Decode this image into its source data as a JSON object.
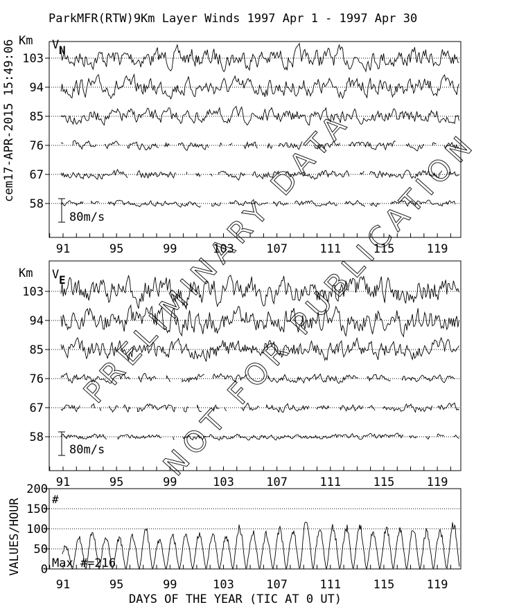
{
  "side_label": "cem17-APR-2015 15:49:06",
  "watermark": {
    "line1": "PRELIMINARY DATA",
    "line2": "NOT FOR PUBLICATION"
  },
  "chart_data": [
    {
      "type": "line",
      "title": "ParkMFR(RTW)9Km Layer Winds 1997 Apr  1 - 1997 Apr 30",
      "component_label": "V",
      "component_sub": "N",
      "ylabel": "Km",
      "heights_km": [
        103,
        94,
        85,
        76,
        67,
        58
      ],
      "y_tick_labels": [
        "103",
        "94",
        "85",
        "76",
        "67",
        "58"
      ],
      "scale_label": "80m/s",
      "x_tick_labels": [
        "91",
        "95",
        "99",
        "103",
        "107",
        "111",
        "115",
        "119"
      ],
      "xlim": [
        89,
        121.3
      ],
      "grid": "dotted at each height"
    },
    {
      "type": "line",
      "component_label": "V",
      "component_sub": "E",
      "ylabel": "Km",
      "heights_km": [
        103,
        94,
        85,
        76,
        67,
        58
      ],
      "y_tick_labels": [
        "103",
        "94",
        "85",
        "76",
        "67",
        "58"
      ],
      "scale_label": "80m/s",
      "x_tick_labels": [
        "91",
        "95",
        "99",
        "103",
        "107",
        "111",
        "115",
        "119"
      ],
      "xlim": [
        89,
        121.3
      ],
      "grid": "dotted at each height"
    },
    {
      "type": "line",
      "ylabel": "VALUES/HOUR",
      "xlabel": "DAYS OF THE YEAR (TIC AT 0 UT)",
      "ylim": [
        0,
        200
      ],
      "y_tick_labels": [
        "200",
        "150",
        "100",
        "50",
        "0"
      ],
      "x_tick_labels": [
        "91",
        "95",
        "99",
        "103",
        "107",
        "111",
        "115",
        "119"
      ],
      "marker_label": "#",
      "annotation": "Max #=216",
      "daily_days": [
        91,
        92,
        93,
        94,
        95,
        96,
        97,
        98,
        99,
        100,
        101,
        102,
        103,
        104,
        105,
        106,
        107,
        108,
        109,
        110,
        111,
        112,
        113,
        114,
        115,
        116,
        117,
        118,
        119,
        120
      ],
      "daily_peak_values": [
        60,
        80,
        98,
        85,
        80,
        85,
        100,
        75,
        85,
        90,
        92,
        90,
        85,
        108,
        95,
        90,
        102,
        100,
        125,
        105,
        108,
        108,
        110,
        95,
        105,
        105,
        102,
        98,
        100,
        118
      ],
      "grid": "dotted at 50, 100, 150"
    }
  ]
}
